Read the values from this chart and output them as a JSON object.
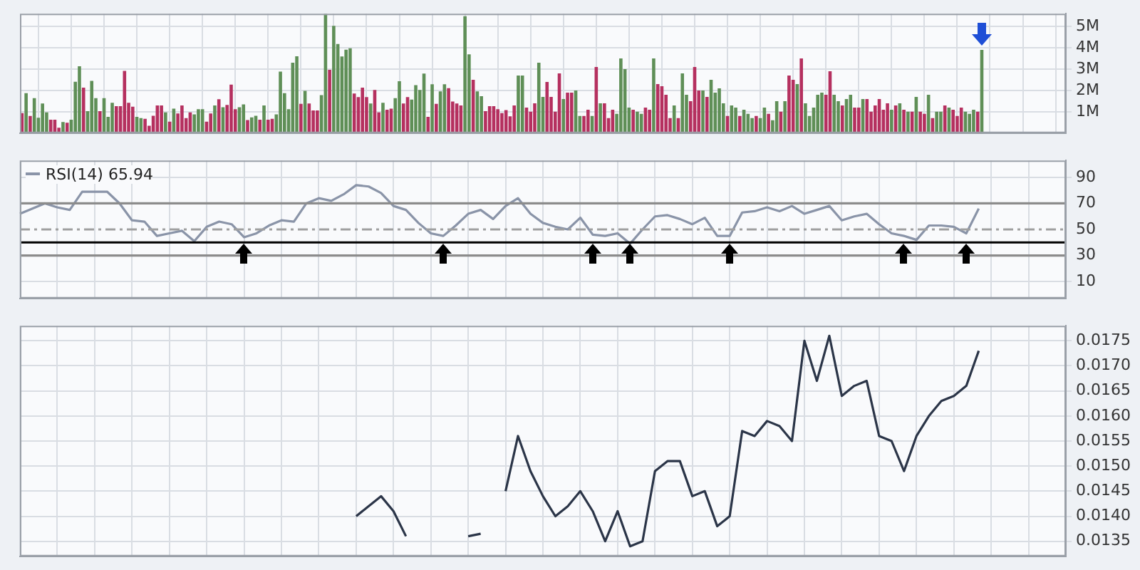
{
  "chart_data": [
    {
      "type": "bar",
      "grid": true,
      "tick_labels": "y",
      "ylim": [
        0,
        5.6
      ],
      "yticks": [
        {
          "value": 1,
          "label": "1M"
        },
        {
          "value": 2,
          "label": "2M"
        },
        {
          "value": 3,
          "label": "3M"
        },
        {
          "value": 4,
          "label": "4M"
        },
        {
          "value": 5,
          "label": "5M"
        }
      ],
      "categories": [
        null,
        null,
        null,
        null,
        null,
        null,
        null,
        null,
        null,
        null,
        null,
        null,
        null,
        null,
        null,
        null,
        null,
        null,
        null,
        null,
        null,
        null,
        null,
        null,
        null,
        null,
        null,
        null,
        null,
        null,
        null,
        null,
        null,
        null,
        null,
        null,
        null,
        null,
        null,
        null,
        null,
        null,
        null,
        null,
        null,
        null,
        null,
        null,
        null,
        null,
        null,
        null,
        null,
        null,
        null,
        null,
        null,
        null,
        null,
        null,
        null,
        null,
        null,
        null,
        null,
        null,
        null,
        null,
        null,
        null,
        null,
        null,
        null,
        null,
        null,
        null,
        null,
        null,
        null,
        null,
        null,
        null,
        null,
        null,
        null,
        null,
        null,
        null,
        null,
        null,
        null,
        null,
        null,
        null,
        null,
        null,
        null,
        null,
        null,
        null,
        null,
        null,
        null,
        null,
        null,
        null,
        null,
        null,
        null,
        null,
        null,
        null,
        null,
        null,
        null,
        null,
        null,
        null,
        null,
        null,
        null,
        null,
        null,
        null,
        null,
        null,
        null,
        null,
        null,
        null,
        null,
        null,
        null,
        null,
        null,
        null,
        null,
        null,
        null,
        null,
        null,
        null,
        null,
        null,
        null,
        null,
        null,
        null,
        null,
        null,
        null,
        null,
        null,
        null,
        null,
        null,
        null,
        null,
        null,
        null,
        null,
        null,
        null,
        null,
        null,
        null,
        null,
        null,
        null,
        null,
        null,
        null,
        null,
        null,
        null,
        null,
        null,
        null,
        null,
        null,
        null,
        null,
        null,
        null,
        null,
        null,
        null,
        null,
        null,
        null,
        null,
        null,
        null,
        null,
        null,
        null,
        null,
        null,
        null,
        null,
        null,
        null,
        null,
        null,
        null,
        null,
        null,
        null,
        null,
        null,
        null,
        null,
        null,
        null,
        null,
        null,
        null,
        null,
        null,
        null,
        null,
        null,
        null,
        null,
        null,
        null,
        null,
        null,
        null,
        null,
        null,
        null,
        null,
        null,
        null,
        null,
        null,
        null,
        null,
        null,
        null,
        null,
        null,
        null,
        null,
        null,
        null,
        null,
        null,
        null,
        null,
        null,
        null,
        null,
        null
      ],
      "values": [
        0.94,
        1.87,
        0.8,
        1.64,
        0.72,
        1.39,
        0.97,
        0.63,
        0.63,
        0.25,
        0.52,
        0.49,
        0.63,
        2.41,
        3.13,
        2.13,
        1.03,
        2.45,
        1.64,
        1.03,
        1.64,
        0.76,
        1.42,
        1.26,
        1.26,
        2.92,
        1.42,
        1.24,
        0.76,
        0.7,
        0.67,
        0.34,
        0.81,
        1.3,
        1.3,
        0.97,
        0.54,
        1.15,
        0.92,
        1.3,
        0.7,
        0.97,
        0.88,
        1.12,
        1.12,
        0.54,
        0.92,
        1.3,
        1.59,
        1.21,
        1.32,
        2.27,
        1.12,
        1.21,
        1.35,
        0.61,
        0.74,
        0.81,
        0.63,
        1.3,
        0.63,
        0.67,
        0.88,
        2.88,
        1.87,
        1.12,
        3.3,
        3.6,
        1.37,
        1.98,
        1.39,
        1.06,
        1.06,
        1.78,
        5.6,
        2.97,
        5.03,
        4.18,
        3.59,
        3.91,
        3.98,
        1.86,
        1.69,
        2.13,
        1.69,
        1.39,
        2.02,
        0.97,
        1.42,
        1.1,
        1.15,
        1.64,
        2.43,
        1.39,
        1.69,
        1.57,
        2.25,
        2.02,
        2.79,
        0.76,
        2.29,
        1.37,
        1.96,
        2.29,
        2.11,
        1.48,
        1.39,
        1.3,
        5.48,
        3.69,
        2.5,
        1.96,
        1.73,
        1.03,
        1.26,
        1.26,
        1.12,
        0.94,
        1.08,
        0.79,
        1.3,
        2.7,
        2.7,
        1.2,
        1.0,
        1.4,
        3.3,
        1.7,
        2.4,
        1.7,
        1.0,
        2.8,
        1.6,
        1.9,
        1.9,
        2.0,
        0.8,
        0.8,
        1.1,
        0.8,
        3.1,
        1.4,
        1.4,
        0.7,
        1.1,
        0.9,
        3.5,
        3.0,
        1.2,
        1.1,
        1.0,
        0.9,
        1.2,
        1.1,
        3.5,
        2.3,
        2.2,
        1.8,
        0.7,
        1.3,
        0.7,
        2.8,
        1.8,
        1.5,
        3.1,
        2.0,
        2.0,
        1.7,
        2.5,
        1.9,
        2.1,
        1.4,
        0.8,
        1.3,
        1.2,
        0.8,
        1.1,
        0.9,
        0.7,
        0.8,
        0.7,
        1.2,
        0.9,
        0.6,
        1.5,
        1.0,
        1.5,
        2.7,
        2.5,
        2.3,
        3.5,
        1.4,
        0.8,
        1.2,
        1.8,
        1.9,
        1.8,
        2.9,
        1.8,
        1.5,
        1.3,
        1.6,
        1.8,
        1.2,
        1.2,
        1.6,
        1.6,
        1.0,
        1.3,
        1.6,
        1.1,
        1.4,
        1.1,
        1.3,
        1.4,
        1.1,
        1.0,
        1.0,
        1.7,
        1.0,
        0.9,
        1.8,
        0.7,
        1.0,
        1.0,
        1.3,
        1.2,
        1.1,
        0.8,
        1.2,
        1.0,
        0.9,
        1.1,
        1.0,
        3.9,
        null,
        null,
        null,
        null,
        null,
        null,
        null,
        null,
        null,
        null,
        null,
        null,
        null,
        null,
        null,
        null,
        null,
        null,
        null,
        null
      ],
      "colors": [
        "#b5305f",
        "#5f8f57",
        "#b5305f",
        "#5f8f57",
        "#5f8f57",
        "#5f8f57",
        "#5f8f57",
        "#b5305f",
        "#b5305f",
        "#b5305f",
        "#5f8f57",
        "#b5305f",
        "#5f8f57",
        "#5f8f57",
        "#5f8f57",
        "#b5305f",
        "#5f8f57",
        "#5f8f57",
        "#5f8f57",
        "#b5305f",
        "#5f8f57",
        "#5f8f57",
        "#5f8f57",
        "#b5305f",
        "#b5305f",
        "#b5305f",
        "#b5305f",
        "#b5305f",
        "#5f8f57",
        "#5f8f57",
        "#b5305f",
        "#b5305f",
        "#b5305f",
        "#b5305f",
        "#b5305f",
        "#5f8f57",
        "#b5305f",
        "#5f8f57",
        "#b5305f",
        "#b5305f",
        "#b5305f",
        "#b5305f",
        "#5f8f57",
        "#5f8f57",
        "#5f8f57",
        "#b5305f",
        "#b5305f",
        "#5f8f57",
        "#b5305f",
        "#5f8f57",
        "#b5305f",
        "#b5305f",
        "#b5305f",
        "#5f8f57",
        "#5f8f57",
        "#b5305f",
        "#5f8f57",
        "#5f8f57",
        "#b5305f",
        "#5f8f57",
        "#b5305f",
        "#b5305f",
        "#5f8f57",
        "#5f8f57",
        "#5f8f57",
        "#5f8f57",
        "#5f8f57",
        "#5f8f57",
        "#b5305f",
        "#5f8f57",
        "#b5305f",
        "#b5305f",
        "#b5305f",
        "#5f8f57",
        "#5f8f57",
        "#b5305f",
        "#5f8f57",
        "#5f8f57",
        "#5f8f57",
        "#5f8f57",
        "#5f8f57",
        "#b5305f",
        "#b5305f",
        "#b5305f",
        "#b5305f",
        "#5f8f57",
        "#b5305f",
        "#b5305f",
        "#5f8f57",
        "#b5305f",
        "#b5305f",
        "#5f8f57",
        "#5f8f57",
        "#b5305f",
        "#b5305f",
        "#5f8f57",
        "#5f8f57",
        "#5f8f57",
        "#5f8f57",
        "#b5305f",
        "#5f8f57",
        "#b5305f",
        "#5f8f57",
        "#5f8f57",
        "#b5305f",
        "#b5305f",
        "#b5305f",
        "#b5305f",
        "#5f8f57",
        "#5f8f57",
        "#b5305f",
        "#5f8f57",
        "#5f8f57",
        "#b5305f",
        "#b5305f",
        "#b5305f",
        "#b5305f",
        "#b5305f",
        "#b5305f",
        "#b5305f",
        "#b5305f",
        "#5f8f57",
        "#5f8f57",
        "#b5305f",
        "#b5305f",
        "#b5305f",
        "#5f8f57",
        "#5f8f57",
        "#b5305f",
        "#b5305f",
        "#b5305f",
        "#b5305f",
        "#5f8f57",
        "#b5305f",
        "#b5305f",
        "#5f8f57",
        "#5f8f57",
        "#b5305f",
        "#b5305f",
        "#5f8f57",
        "#b5305f",
        "#5f8f57",
        "#b5305f",
        "#b5305f",
        "#b5305f",
        "#5f8f57",
        "#5f8f57",
        "#5f8f57",
        "#5f8f57",
        "#b5305f",
        "#5f8f57",
        "#5f8f57",
        "#b5305f",
        "#b5305f",
        "#5f8f57",
        "#b5305f",
        "#b5305f",
        "#b5305f",
        "#b5305f",
        "#5f8f57",
        "#b5305f",
        "#5f8f57",
        "#5f8f57",
        "#b5305f",
        "#b5305f",
        "#b5305f",
        "#5f8f57",
        "#b5305f",
        "#5f8f57",
        "#5f8f57",
        "#5f8f57",
        "#5f8f57",
        "#b5305f",
        "#5f8f57",
        "#5f8f57",
        "#b5305f",
        "#5f8f57",
        "#5f8f57",
        "#5f8f57",
        "#b5305f",
        "#5f8f57",
        "#5f8f57",
        "#b5305f",
        "#5f8f57",
        "#5f8f57",
        "#b5305f",
        "#5f8f57",
        "#b5305f",
        "#b5305f",
        "#5f8f57",
        "#b5305f",
        "#5f8f57",
        "#5f8f57",
        "#5f8f57",
        "#5f8f57",
        "#5f8f57",
        "#b5305f",
        "#b5305f",
        "#5f8f57",
        "#5f8f57",
        "#b5305f",
        "#5f8f57",
        "#5f8f57",
        "#b5305f",
        "#b5305f",
        "#5f8f57",
        "#b5305f",
        "#b5305f",
        "#b5305f",
        "#b5305f",
        "#b5305f",
        "#b5305f",
        "#5f8f57",
        "#b5305f",
        "#5f8f57",
        "#b5305f",
        "#5f8f57",
        "#b5305f",
        "#5f8f57",
        "#b5305f",
        "#b5305f",
        "#5f8f57",
        "#b5305f",
        "#5f8f57",
        "#5f8f57",
        "#b5305f",
        "#5f8f57",
        "#b5305f",
        "#b5305f",
        "#b5305f",
        "#5f8f57",
        "#5f8f57",
        "#5f8f57",
        "#b5305f",
        "#5f8f57",
        "#5f8f57",
        "#5f8f57",
        "#5f8f57",
        "#5f8f57",
        "#5f8f57",
        "#5f8f57",
        "#5f8f57",
        "#5f8f57",
        "#5f8f57",
        "#5f8f57",
        "#5f8f57",
        "#5f8f57",
        "#5f8f57",
        "#5f8f57",
        "#5f8f57",
        "#5f8f57",
        "#5f8f57",
        "#5f8f57",
        "#5f8f57",
        "#5f8f57"
      ]
    },
    {
      "type": "line",
      "grid": true,
      "tick_labels": "y",
      "legend": "top left",
      "ylim": [
        -3,
        103
      ],
      "yticks": [
        10,
        30,
        50,
        70,
        90
      ],
      "categories": [
        null,
        null,
        null,
        null,
        null,
        null,
        null,
        null,
        null,
        null,
        null,
        null,
        null,
        null,
        null,
        null,
        null,
        null,
        null,
        null,
        null,
        null,
        null,
        null,
        null,
        null,
        null,
        null,
        null,
        null,
        null,
        null,
        null,
        null,
        null,
        null,
        null,
        null,
        null,
        null,
        null,
        null,
        null,
        null,
        null,
        null,
        null,
        null,
        null,
        null,
        null,
        null,
        null,
        null,
        null,
        null,
        null,
        null,
        null,
        null,
        null,
        null,
        null,
        null,
        null,
        null,
        null,
        null,
        null,
        null,
        null,
        null,
        null,
        null,
        null,
        null,
        null,
        null,
        null,
        null,
        null,
        null,
        null,
        null,
        null
      ],
      "series": [
        {
          "name": "RSI(14) 65.94",
          "color": "#8a94a8",
          "values": [
            62,
            66,
            70,
            67,
            65,
            79,
            79,
            79,
            70,
            57,
            56,
            45,
            47,
            49,
            41,
            52,
            56,
            54,
            44,
            47,
            53,
            57,
            56,
            70,
            74,
            72,
            77,
            84,
            83,
            78,
            68,
            65,
            55,
            47,
            45,
            53,
            62,
            65,
            58,
            68,
            74,
            62,
            55,
            52,
            50,
            59,
            46,
            45,
            47,
            39,
            50,
            60,
            61,
            58,
            54,
            59,
            45,
            45,
            63,
            64,
            67,
            64,
            68,
            62,
            65,
            68,
            57,
            60,
            62,
            54,
            47,
            45,
            42,
            53,
            53,
            52,
            47,
            66,
            null,
            null,
            null,
            null,
            null,
            null,
            null
          ]
        }
      ],
      "ref_lines": [
        {
          "axis": "y",
          "value": 70,
          "color": "#8c8c8c",
          "line_style": "solid"
        },
        {
          "axis": "y",
          "value": 50,
          "color": "#a0a0a0",
          "line_style": "dashed"
        },
        {
          "axis": "y",
          "value": 40,
          "color": "#000000",
          "line_style": "solid"
        },
        {
          "axis": "y",
          "value": 30,
          "color": "#8c8c8c",
          "line_style": "solid"
        }
      ]
    },
    {
      "type": "line",
      "grid": true,
      "tick_labels": "y",
      "ylim": [
        0.0132,
        0.0178
      ],
      "yticks": [
        0.0135,
        {
          "value": 0.014,
          "label": "0.0140"
        },
        0.0145,
        {
          "value": 0.015,
          "label": "0.0150"
        },
        0.0155,
        {
          "value": 0.016,
          "label": "0.0160"
        },
        0.0165,
        {
          "value": 0.017,
          "label": "0.0170"
        },
        0.0175
      ],
      "categories": [
        null,
        null,
        null,
        null,
        null,
        null,
        null,
        null,
        null,
        null,
        null,
        null,
        null,
        null,
        null,
        null,
        null,
        null,
        null,
        null,
        null,
        null,
        null,
        null,
        null,
        null,
        null,
        null,
        null,
        null,
        null,
        null,
        null,
        null,
        null,
        null,
        null,
        null,
        null,
        null,
        null,
        null,
        null,
        null,
        null,
        null,
        null,
        null,
        null,
        null,
        null,
        null,
        null,
        null,
        null,
        null,
        null,
        null,
        null,
        null,
        null,
        null,
        null,
        null,
        null,
        null,
        null,
        null,
        null,
        null,
        null,
        null,
        null,
        null,
        null,
        null,
        null,
        null,
        null,
        null,
        null,
        null,
        null,
        null,
        null
      ],
      "series": [
        {
          "color": "#2b3548",
          "values": [
            null,
            null,
            null,
            null,
            null,
            null,
            null,
            null,
            null,
            null,
            null,
            null,
            null,
            null,
            null,
            null,
            null,
            null,
            null,
            null,
            null,
            null,
            null,
            null,
            null,
            null,
            null,
            0.014,
            0.0142,
            0.0144,
            0.0141,
            0.0136,
            null,
            null,
            null,
            null,
            0.0136,
            0.01365,
            null,
            0.0145,
            0.0156,
            0.0149,
            0.0144,
            0.014,
            0.0142,
            0.0145,
            0.0141,
            0.0135,
            0.0141,
            0.0134,
            0.0135,
            0.0149,
            0.0151,
            0.0151,
            0.0144,
            0.0145,
            0.0138,
            0.014,
            0.0157,
            0.0156,
            0.0159,
            0.0158,
            0.0155,
            0.0175,
            0.0167,
            0.0176,
            0.0164,
            0.0166,
            0.0167,
            0.0156,
            0.0155,
            0.0149,
            0.0156,
            0.016,
            0.0163,
            0.0164,
            0.0166,
            0.0173,
            null,
            null,
            null,
            null,
            null,
            null,
            null
          ]
        }
      ]
    }
  ]
}
